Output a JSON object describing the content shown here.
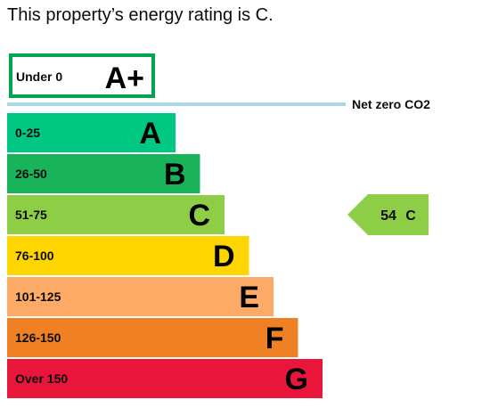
{
  "title": "This property’s energy rating is C.",
  "chart_data": {
    "type": "bar",
    "title": "",
    "top_band": {
      "range": "Under 0",
      "letter": "A+",
      "color": "#00a651"
    },
    "net_zero_label": "Net zero CO2",
    "net_zero_color": "#a6d8e6",
    "bands": [
      {
        "range": "0-25",
        "letter": "A",
        "color": "#00c781"
      },
      {
        "range": "26-50",
        "letter": "B",
        "color": "#19b459"
      },
      {
        "range": "51-75",
        "letter": "C",
        "color": "#8dce46"
      },
      {
        "range": "76-100",
        "letter": "D",
        "color": "#ffd500"
      },
      {
        "range": "101-125",
        "letter": "E",
        "color": "#fcaa65"
      },
      {
        "range": "126-150",
        "letter": "F",
        "color": "#ef8023"
      },
      {
        "range": "Over 150",
        "letter": "G",
        "color": "#e9153b"
      }
    ],
    "current_rating": {
      "score": 54,
      "letter": "C",
      "color": "#8dce46"
    }
  }
}
